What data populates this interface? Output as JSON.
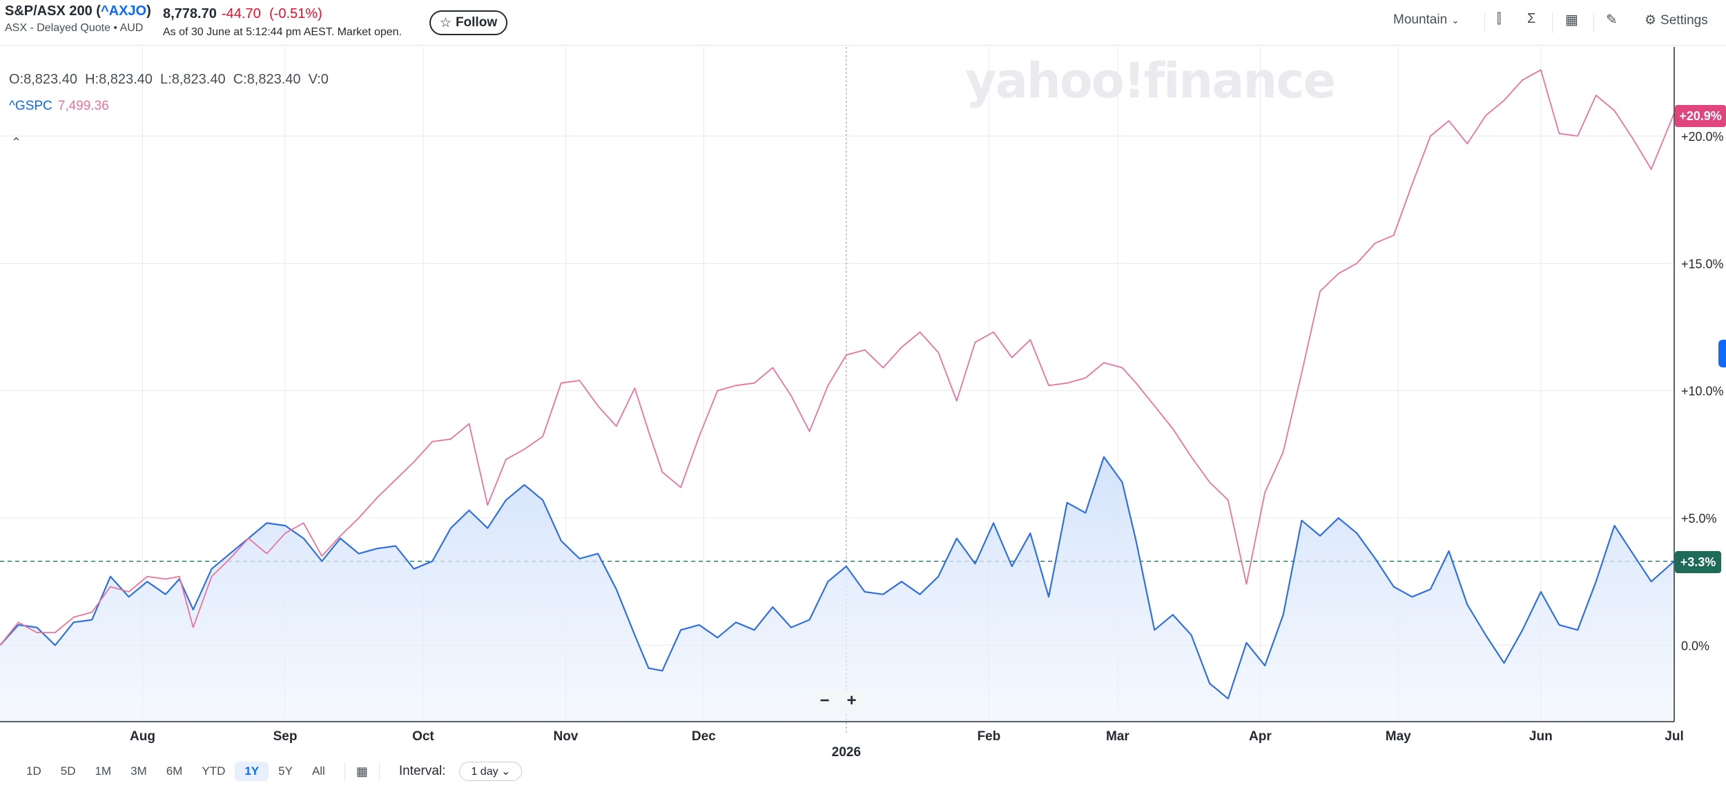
{
  "header": {
    "title_prefix": "S&P/ASX 200 (",
    "ticker": "^AXJO",
    "title_suffix": ")",
    "subtitle": "ASX - Delayed Quote • AUD",
    "price": "8,778.70",
    "change": "-44.70",
    "change_pct": "(-0.51%)",
    "as_of": "As of 30 June at 5:12:44 pm AEST. Market open.",
    "follow_label": "Follow",
    "chart_style": "Mountain",
    "settings_label": "Settings",
    "watermark": "yahoo!finance"
  },
  "legend": {
    "ohlc": "O:8,823.40  H:8,823.40  L:8,823.40  C:8,823.40  V:0",
    "compare_symbol": "^GSPC",
    "compare_value": "7,499.36"
  },
  "markers": {
    "gspc_pct": "+20.9%",
    "axjo_pct": "+3.3%"
  },
  "colors": {
    "axjo": "#2f6fe4",
    "gspc": "#e8739e",
    "gspc_badge": "#e0457b",
    "axjo_badge": "#1e6b58",
    "grid": "#e6e9ec"
  },
  "toolbar": {
    "ranges": [
      "1D",
      "5D",
      "1M",
      "3M",
      "6M",
      "YTD",
      "1Y",
      "5Y",
      "All"
    ],
    "active_range": "1Y",
    "interval_label": "Interval:",
    "interval_value": "1 day"
  },
  "chart_data": {
    "type": "area",
    "x_type": "date",
    "x_ticks": [
      "Aug",
      "Sep",
      "Oct",
      "Nov",
      "Dec",
      "2026",
      "Feb",
      "Mar",
      "Apr",
      "May",
      "Jun",
      "Jul"
    ],
    "y_ticks": [
      "0.0%",
      "+5.0%",
      "+10.0%",
      "+15.0%",
      "+20.0%"
    ],
    "ylim": [
      -3.0,
      23.5
    ],
    "xlim": [
      "2025-07-01",
      "2026-06-30"
    ],
    "reference_line": 3.3,
    "grid": true,
    "series": [
      {
        "name": "^AXJO",
        "fill": true,
        "points": [
          [
            "2025-07-01",
            0.0
          ],
          [
            "2025-07-05",
            0.8
          ],
          [
            "2025-07-09",
            0.7
          ],
          [
            "2025-07-13",
            0.0
          ],
          [
            "2025-07-17",
            0.9
          ],
          [
            "2025-07-21",
            1.0
          ],
          [
            "2025-07-25",
            2.7
          ],
          [
            "2025-07-29",
            1.9
          ],
          [
            "2025-08-02",
            2.5
          ],
          [
            "2025-08-06",
            2.0
          ],
          [
            "2025-08-09",
            2.6
          ],
          [
            "2025-08-12",
            1.4
          ],
          [
            "2025-08-16",
            3.0
          ],
          [
            "2025-08-20",
            3.6
          ],
          [
            "2025-08-24",
            4.2
          ],
          [
            "2025-08-28",
            4.8
          ],
          [
            "2025-09-01",
            4.7
          ],
          [
            "2025-09-05",
            4.2
          ],
          [
            "2025-09-09",
            3.3
          ],
          [
            "2025-09-13",
            4.2
          ],
          [
            "2025-09-17",
            3.6
          ],
          [
            "2025-09-21",
            3.8
          ],
          [
            "2025-09-25",
            3.9
          ],
          [
            "2025-09-29",
            3.0
          ],
          [
            "2025-10-03",
            3.3
          ],
          [
            "2025-10-07",
            4.6
          ],
          [
            "2025-10-11",
            5.3
          ],
          [
            "2025-10-15",
            4.6
          ],
          [
            "2025-10-19",
            5.7
          ],
          [
            "2025-10-23",
            6.3
          ],
          [
            "2025-10-27",
            5.7
          ],
          [
            "2025-10-31",
            4.1
          ],
          [
            "2025-11-04",
            3.4
          ],
          [
            "2025-11-08",
            3.6
          ],
          [
            "2025-11-12",
            2.2
          ],
          [
            "2025-11-16",
            0.4
          ],
          [
            "2025-11-19",
            -0.9
          ],
          [
            "2025-11-22",
            -1.0
          ],
          [
            "2025-11-26",
            0.6
          ],
          [
            "2025-11-30",
            0.8
          ],
          [
            "2025-12-04",
            0.3
          ],
          [
            "2025-12-08",
            0.9
          ],
          [
            "2025-12-12",
            0.6
          ],
          [
            "2025-12-16",
            1.5
          ],
          [
            "2025-12-20",
            0.7
          ],
          [
            "2025-12-24",
            1.0
          ],
          [
            "2025-12-28",
            2.5
          ],
          [
            "2026-01-01",
            3.1
          ],
          [
            "2026-01-05",
            2.1
          ],
          [
            "2026-01-09",
            2.0
          ],
          [
            "2026-01-13",
            2.5
          ],
          [
            "2026-01-17",
            2.0
          ],
          [
            "2026-01-21",
            2.7
          ],
          [
            "2026-01-25",
            4.2
          ],
          [
            "2026-01-29",
            3.2
          ],
          [
            "2026-02-02",
            4.8
          ],
          [
            "2026-02-06",
            3.1
          ],
          [
            "2026-02-10",
            4.4
          ],
          [
            "2026-02-14",
            1.9
          ],
          [
            "2026-02-18",
            5.6
          ],
          [
            "2026-02-22",
            5.2
          ],
          [
            "2026-02-26",
            7.4
          ],
          [
            "2026-03-02",
            6.4
          ],
          [
            "2026-03-05",
            4.1
          ],
          [
            "2026-03-09",
            0.6
          ],
          [
            "2026-03-13",
            1.2
          ],
          [
            "2026-03-17",
            0.4
          ],
          [
            "2026-03-21",
            -1.5
          ],
          [
            "2026-03-25",
            -2.1
          ],
          [
            "2026-03-29",
            0.1
          ],
          [
            "2026-04-02",
            -0.8
          ],
          [
            "2026-04-06",
            1.2
          ],
          [
            "2026-04-10",
            4.9
          ],
          [
            "2026-04-14",
            4.3
          ],
          [
            "2026-04-18",
            5.0
          ],
          [
            "2026-04-22",
            4.4
          ],
          [
            "2026-04-26",
            3.4
          ],
          [
            "2026-04-30",
            2.3
          ],
          [
            "2026-05-04",
            1.9
          ],
          [
            "2026-05-08",
            2.2
          ],
          [
            "2026-05-12",
            3.7
          ],
          [
            "2026-05-16",
            1.6
          ],
          [
            "2026-05-20",
            0.4
          ],
          [
            "2026-05-24",
            -0.7
          ],
          [
            "2026-05-28",
            0.6
          ],
          [
            "2026-06-01",
            2.1
          ],
          [
            "2026-06-05",
            0.8
          ],
          [
            "2026-06-09",
            0.6
          ],
          [
            "2026-06-13",
            2.5
          ],
          [
            "2026-06-17",
            4.7
          ],
          [
            "2026-06-21",
            3.6
          ],
          [
            "2026-06-25",
            2.5
          ],
          [
            "2026-06-30",
            3.3
          ]
        ]
      },
      {
        "name": "^GSPC",
        "fill": false,
        "points": [
          [
            "2025-07-01",
            0.0
          ],
          [
            "2025-07-05",
            0.9
          ],
          [
            "2025-07-09",
            0.5
          ],
          [
            "2025-07-13",
            0.5
          ],
          [
            "2025-07-17",
            1.1
          ],
          [
            "2025-07-21",
            1.3
          ],
          [
            "2025-07-25",
            2.3
          ],
          [
            "2025-07-29",
            2.1
          ],
          [
            "2025-08-02",
            2.7
          ],
          [
            "2025-08-06",
            2.6
          ],
          [
            "2025-08-09",
            2.7
          ],
          [
            "2025-08-12",
            0.7
          ],
          [
            "2025-08-16",
            2.7
          ],
          [
            "2025-08-20",
            3.4
          ],
          [
            "2025-08-24",
            4.2
          ],
          [
            "2025-08-28",
            3.6
          ],
          [
            "2025-09-01",
            4.4
          ],
          [
            "2025-09-05",
            4.8
          ],
          [
            "2025-09-09",
            3.5
          ],
          [
            "2025-09-13",
            4.3
          ],
          [
            "2025-09-17",
            5.0
          ],
          [
            "2025-09-21",
            5.8
          ],
          [
            "2025-09-25",
            6.5
          ],
          [
            "2025-09-29",
            7.2
          ],
          [
            "2025-10-03",
            8.0
          ],
          [
            "2025-10-07",
            8.1
          ],
          [
            "2025-10-11",
            8.7
          ],
          [
            "2025-10-15",
            5.5
          ],
          [
            "2025-10-19",
            7.3
          ],
          [
            "2025-10-23",
            7.7
          ],
          [
            "2025-10-27",
            8.2
          ],
          [
            "2025-10-31",
            10.3
          ],
          [
            "2025-11-04",
            10.4
          ],
          [
            "2025-11-08",
            9.4
          ],
          [
            "2025-11-12",
            8.6
          ],
          [
            "2025-11-16",
            10.1
          ],
          [
            "2025-11-19",
            8.4
          ],
          [
            "2025-11-22",
            6.8
          ],
          [
            "2025-11-26",
            6.2
          ],
          [
            "2025-11-30",
            8.2
          ],
          [
            "2025-12-04",
            10.0
          ],
          [
            "2025-12-08",
            10.2
          ],
          [
            "2025-12-12",
            10.3
          ],
          [
            "2025-12-16",
            10.9
          ],
          [
            "2025-12-20",
            9.8
          ],
          [
            "2025-12-24",
            8.4
          ],
          [
            "2025-12-28",
            10.2
          ],
          [
            "2026-01-01",
            11.4
          ],
          [
            "2026-01-05",
            11.6
          ],
          [
            "2026-01-09",
            10.9
          ],
          [
            "2026-01-13",
            11.7
          ],
          [
            "2026-01-17",
            12.3
          ],
          [
            "2026-01-21",
            11.5
          ],
          [
            "2026-01-25",
            9.6
          ],
          [
            "2026-01-29",
            11.9
          ],
          [
            "2026-02-02",
            12.3
          ],
          [
            "2026-02-06",
            11.3
          ],
          [
            "2026-02-10",
            12.0
          ],
          [
            "2026-02-14",
            10.2
          ],
          [
            "2026-02-18",
            10.3
          ],
          [
            "2026-02-22",
            10.5
          ],
          [
            "2026-02-26",
            11.1
          ],
          [
            "2026-03-02",
            10.9
          ],
          [
            "2026-03-05",
            10.3
          ],
          [
            "2026-03-09",
            9.4
          ],
          [
            "2026-03-13",
            8.5
          ],
          [
            "2026-03-17",
            7.4
          ],
          [
            "2026-03-21",
            6.4
          ],
          [
            "2026-03-25",
            5.7
          ],
          [
            "2026-03-29",
            2.4
          ],
          [
            "2026-04-02",
            6.0
          ],
          [
            "2026-04-06",
            7.6
          ],
          [
            "2026-04-10",
            10.7
          ],
          [
            "2026-04-14",
            13.9
          ],
          [
            "2026-04-18",
            14.6
          ],
          [
            "2026-04-22",
            15.0
          ],
          [
            "2026-04-26",
            15.8
          ],
          [
            "2026-04-30",
            16.1
          ],
          [
            "2026-05-04",
            18.1
          ],
          [
            "2026-05-08",
            20.0
          ],
          [
            "2026-05-12",
            20.6
          ],
          [
            "2026-05-16",
            19.7
          ],
          [
            "2026-05-20",
            20.8
          ],
          [
            "2026-05-24",
            21.4
          ],
          [
            "2026-05-28",
            22.2
          ],
          [
            "2026-06-01",
            22.6
          ],
          [
            "2026-06-05",
            20.1
          ],
          [
            "2026-06-09",
            20.0
          ],
          [
            "2026-06-13",
            21.6
          ],
          [
            "2026-06-17",
            21.0
          ],
          [
            "2026-06-21",
            19.9
          ],
          [
            "2026-06-25",
            18.7
          ],
          [
            "2026-06-30",
            20.9
          ]
        ]
      }
    ]
  }
}
